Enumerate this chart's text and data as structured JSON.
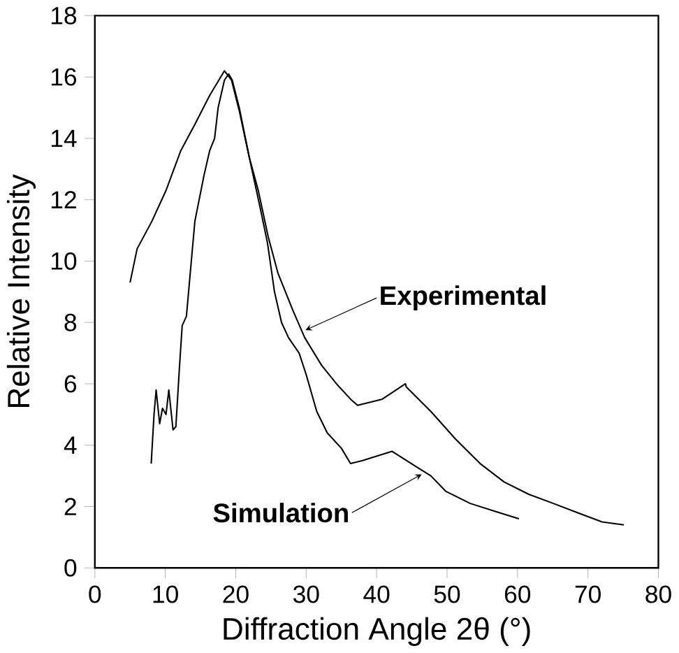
{
  "chart_data": {
    "type": "line",
    "xlabel": "Diffraction Angle 2θ (°)",
    "ylabel": "Relative Intensity",
    "xlim": [
      0,
      80
    ],
    "ylim": [
      0,
      18
    ],
    "xticks": [
      0,
      10,
      20,
      30,
      40,
      50,
      60,
      70,
      80
    ],
    "yticks": [
      0,
      2,
      4,
      6,
      8,
      10,
      12,
      14,
      16,
      18
    ],
    "grid": false,
    "marker": "none",
    "line_style": "solid",
    "series": [
      {
        "color": "#000000",
        "x": [
          5.0,
          6.0,
          8.1,
          10.1,
          12.2,
          14.3,
          16.3,
          18.4,
          19.4,
          20.5,
          21.9,
          23.2,
          24.6,
          26.0,
          28.1,
          29.8,
          32.2,
          34.3,
          36.3,
          37.3,
          40.8,
          44.1,
          44.2,
          47.7,
          51.2,
          54.7,
          58.1,
          61.6,
          65.1,
          68.5,
          72.0,
          75.1
        ],
        "values": [
          9.3,
          10.4,
          11.3,
          12.3,
          13.6,
          14.5,
          15.4,
          16.2,
          15.9,
          14.9,
          13.4,
          12.3,
          10.8,
          9.6,
          8.4,
          7.5,
          6.6,
          6.0,
          5.5,
          5.3,
          5.5,
          6.0,
          5.9,
          5.1,
          4.2,
          3.4,
          2.8,
          2.4,
          2.1,
          1.8,
          1.5,
          1.4
        ]
      },
      {
        "color": "#000000",
        "x": [
          8.0,
          8.4,
          8.7,
          9.2,
          9.6,
          10.1,
          10.5,
          11.1,
          11.5,
          12.0,
          12.4,
          13.0,
          13.5,
          14.2,
          15.5,
          16.3,
          17.0,
          17.5,
          18.4,
          19.0,
          19.5,
          20.5,
          22.0,
          23.5,
          24.5,
          25.0,
          25.5,
          26.5,
          27.5,
          29.0,
          30.0,
          31.5,
          33.0,
          35.0,
          36.3,
          38.0,
          42.2,
          45.6,
          47.7,
          49.8,
          53.3,
          57.4,
          60.2
        ],
        "values": [
          3.4,
          5.0,
          5.8,
          4.7,
          5.2,
          5.0,
          5.8,
          4.5,
          4.6,
          6.5,
          7.9,
          8.2,
          9.5,
          11.3,
          12.8,
          13.6,
          14.0,
          15.0,
          15.9,
          16.1,
          15.9,
          15.0,
          13.3,
          11.7,
          10.6,
          9.8,
          9.0,
          8.0,
          7.5,
          7.0,
          6.3,
          5.1,
          4.4,
          3.9,
          3.4,
          3.5,
          3.8,
          3.3,
          3.0,
          2.5,
          2.1,
          1.8,
          1.6
        ]
      }
    ],
    "annotations": [
      {
        "text": "Experimental",
        "x": 29.5,
        "y": 7.7
      },
      {
        "text": "Simulation",
        "x": 46,
        "y": 3.1
      }
    ]
  }
}
